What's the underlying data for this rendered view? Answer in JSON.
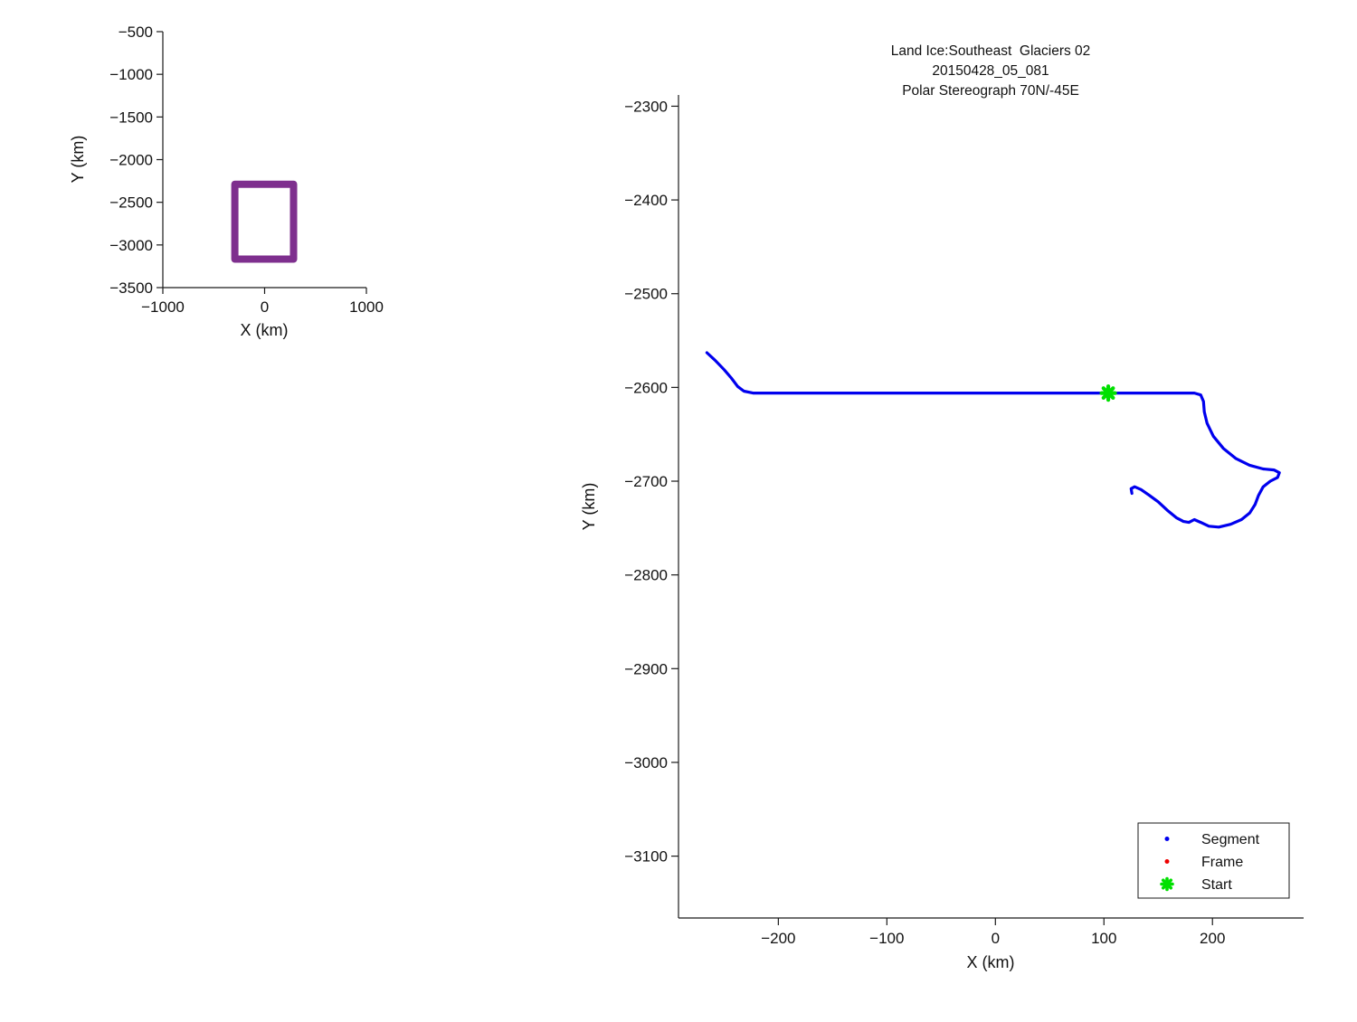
{
  "figure": {
    "background": "#ffffff",
    "colors": {
      "axis": "#1a1a1a",
      "text": "#111111",
      "track_blue": "#0000EE",
      "frame_red": "#EE0000",
      "start_green": "#00E000",
      "extent_purple": "#7E2F8E"
    }
  },
  "chart_data": [
    {
      "id": "overview-inset",
      "type": "line",
      "title": "",
      "xlabel": "X (km)",
      "ylabel": "Y (km)",
      "xlim": [
        -1000,
        1000
      ],
      "ylim": [
        -3500,
        -500
      ],
      "xticks": [
        -1000,
        0,
        1000
      ],
      "yticks": [
        -500,
        -1000,
        -1500,
        -2000,
        -2500,
        -3000,
        -3500
      ],
      "grid": false,
      "legend_position": "none",
      "series": [
        {
          "name": "survey-extent-box",
          "color": "#7E2F8E",
          "linewidth": 8,
          "x": [
            -292,
            284,
            284,
            -292,
            -292
          ],
          "y": [
            -2288,
            -2288,
            -3166,
            -3166,
            -2288
          ]
        }
      ]
    },
    {
      "id": "flight-track",
      "type": "line",
      "title_lines": [
        "Land Ice:Southeast  Glaciers 02",
        "20150428_05_081",
        "Polar Stereograph 70N/-45E"
      ],
      "xlabel": "X (km)",
      "ylabel": "Y (km)",
      "xlim": [
        -292,
        284
      ],
      "ylim": [
        -3166,
        -2288
      ],
      "xticks": [
        -200,
        -100,
        0,
        100,
        200
      ],
      "yticks": [
        -2300,
        -2400,
        -2500,
        -2600,
        -2700,
        -2800,
        -2900,
        -3000,
        -3100
      ],
      "grid": false,
      "legend_position": "lower right",
      "series": [
        {
          "name": "Segment",
          "color": "#0000EE",
          "linewidth": 3.2,
          "x": [
            -265.8,
            -258.3,
            -250.0,
            -243.3,
            -237.5,
            -231.7,
            -223.3,
            -208.3,
            -100.0,
            0.0,
            100.0,
            183.3,
            189.2,
            191.7,
            192.5,
            195.0,
            200.8,
            210.0,
            221.7,
            234.2,
            246.7,
            256.7,
            261.7,
            260.0,
            253.3,
            246.7,
            242.5,
            239.2,
            234.2,
            226.7,
            216.7,
            205.8,
            196.7,
            189.2,
            183.3,
            178.3,
            173.3,
            166.7,
            158.3,
            150.0,
            141.7,
            134.2,
            128.3,
            125.0,
            125.8
          ],
          "y": [
            -2563,
            -2571,
            -2581,
            -2590,
            -2599,
            -2604,
            -2606,
            -2606,
            -2606,
            -2606,
            -2606,
            -2606,
            -2608,
            -2615,
            -2626,
            -2638,
            -2652,
            -2665,
            -2676,
            -2683,
            -2687,
            -2688,
            -2691,
            -2696,
            -2700,
            -2706,
            -2715,
            -2725,
            -2734,
            -2741,
            -2746,
            -2749,
            -2748,
            -2744,
            -2741,
            -2744,
            -2743,
            -2739,
            -2731,
            -2722,
            -2715,
            -2709,
            -2706,
            -2708,
            -2713
          ]
        }
      ],
      "markers": [
        {
          "name": "Start",
          "shape": "asterisk",
          "color": "#00E000",
          "size": 8,
          "x": 104,
          "y": -2606
        }
      ],
      "legend": {
        "entries": [
          {
            "label": "Segment",
            "marker": "dot",
            "color": "#0000EE"
          },
          {
            "label": "Frame",
            "marker": "dot",
            "color": "#EE0000"
          },
          {
            "label": "Start",
            "marker": "asterisk",
            "color": "#00E000"
          }
        ]
      }
    }
  ]
}
